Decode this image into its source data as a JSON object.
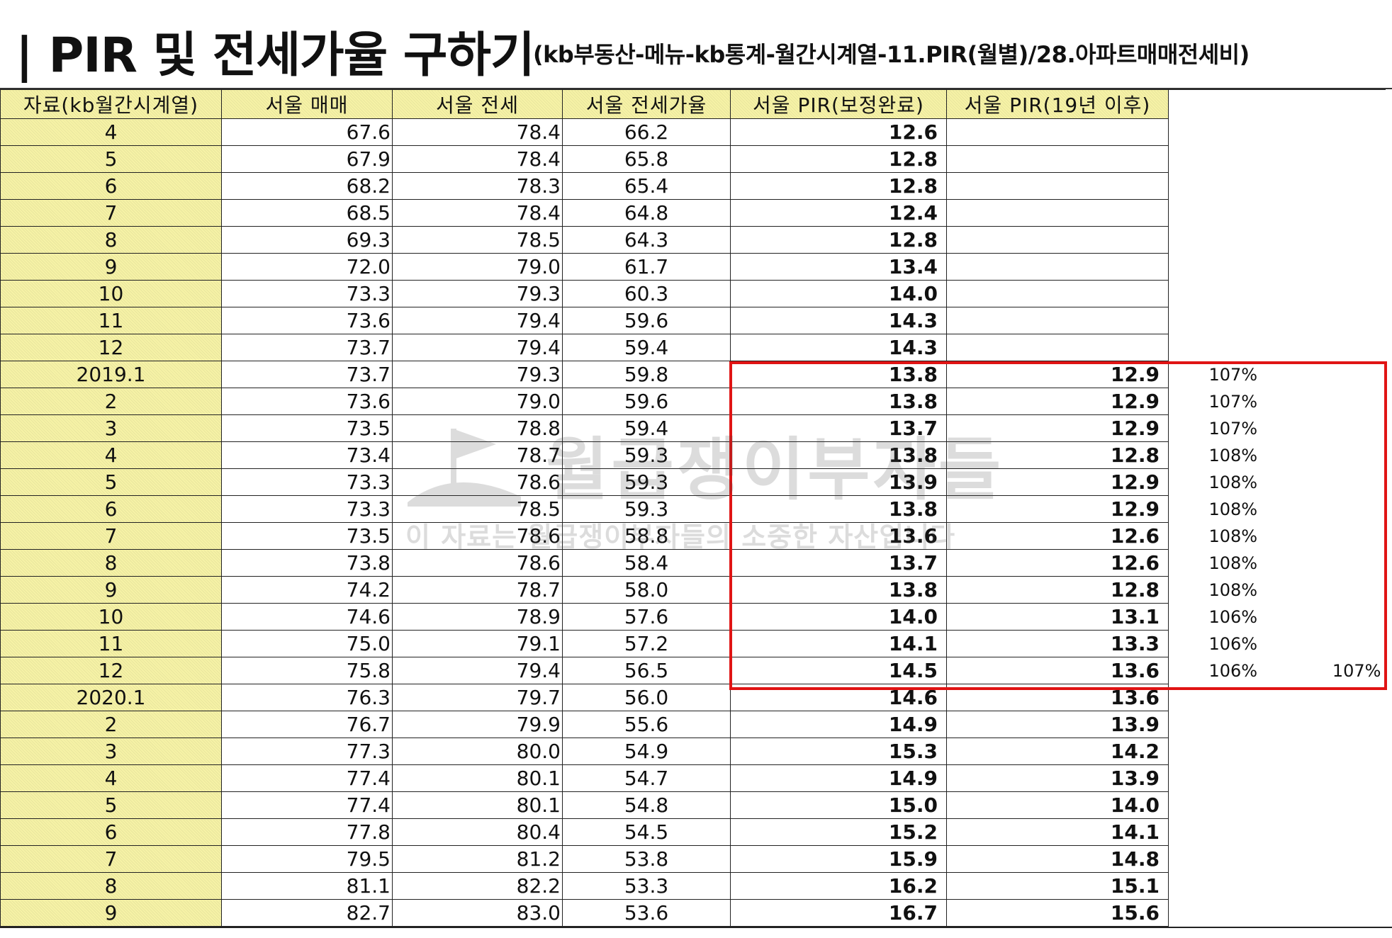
{
  "title": {
    "main": "| PIR 및 전세가율 구하기",
    "sub": "(kb부동산-메뉴-kb통계-월간시계열-11.PIR(월별)/28.아파트매매전세비)"
  },
  "table": {
    "headers": [
      "자료(kb월간시계열)",
      "서울 매매",
      "서울 전세",
      "서울 전세가율",
      "서울 PIR(보정완료)",
      "서울 PIR(19년 이후)"
    ],
    "rows": [
      {
        "date": "4",
        "buy": "67.6",
        "jeonse": "78.4",
        "ratio": "66.2",
        "pir": "12.6",
        "pir19": "",
        "pct": "",
        "avg": ""
      },
      {
        "date": "5",
        "buy": "67.9",
        "jeonse": "78.4",
        "ratio": "65.8",
        "pir": "12.8",
        "pir19": "",
        "pct": "",
        "avg": ""
      },
      {
        "date": "6",
        "buy": "68.2",
        "jeonse": "78.3",
        "ratio": "65.4",
        "pir": "12.8",
        "pir19": "",
        "pct": "",
        "avg": ""
      },
      {
        "date": "7",
        "buy": "68.5",
        "jeonse": "78.4",
        "ratio": "64.8",
        "pir": "12.4",
        "pir19": "",
        "pct": "",
        "avg": ""
      },
      {
        "date": "8",
        "buy": "69.3",
        "jeonse": "78.5",
        "ratio": "64.3",
        "pir": "12.8",
        "pir19": "",
        "pct": "",
        "avg": ""
      },
      {
        "date": "9",
        "buy": "72.0",
        "jeonse": "79.0",
        "ratio": "61.7",
        "pir": "13.4",
        "pir19": "",
        "pct": "",
        "avg": ""
      },
      {
        "date": "10",
        "buy": "73.3",
        "jeonse": "79.3",
        "ratio": "60.3",
        "pir": "14.0",
        "pir19": "",
        "pct": "",
        "avg": ""
      },
      {
        "date": "11",
        "buy": "73.6",
        "jeonse": "79.4",
        "ratio": "59.6",
        "pir": "14.3",
        "pir19": "",
        "pct": "",
        "avg": ""
      },
      {
        "date": "12",
        "buy": "73.7",
        "jeonse": "79.4",
        "ratio": "59.4",
        "pir": "14.3",
        "pir19": "",
        "pct": "",
        "avg": ""
      },
      {
        "date": "2019.1",
        "buy": "73.7",
        "jeonse": "79.3",
        "ratio": "59.8",
        "pir": "13.8",
        "pir19": "12.9",
        "pct": "107%",
        "avg": ""
      },
      {
        "date": "2",
        "buy": "73.6",
        "jeonse": "79.0",
        "ratio": "59.6",
        "pir": "13.8",
        "pir19": "12.9",
        "pct": "107%",
        "avg": ""
      },
      {
        "date": "3",
        "buy": "73.5",
        "jeonse": "78.8",
        "ratio": "59.4",
        "pir": "13.7",
        "pir19": "12.9",
        "pct": "107%",
        "avg": ""
      },
      {
        "date": "4",
        "buy": "73.4",
        "jeonse": "78.7",
        "ratio": "59.3",
        "pir": "13.8",
        "pir19": "12.8",
        "pct": "108%",
        "avg": ""
      },
      {
        "date": "5",
        "buy": "73.3",
        "jeonse": "78.6",
        "ratio": "59.3",
        "pir": "13.9",
        "pir19": "12.9",
        "pct": "108%",
        "avg": ""
      },
      {
        "date": "6",
        "buy": "73.3",
        "jeonse": "78.5",
        "ratio": "59.3",
        "pir": "13.8",
        "pir19": "12.9",
        "pct": "108%",
        "avg": ""
      },
      {
        "date": "7",
        "buy": "73.5",
        "jeonse": "78.6",
        "ratio": "58.8",
        "pir": "13.6",
        "pir19": "12.6",
        "pct": "108%",
        "avg": ""
      },
      {
        "date": "8",
        "buy": "73.8",
        "jeonse": "78.6",
        "ratio": "58.4",
        "pir": "13.7",
        "pir19": "12.6",
        "pct": "108%",
        "avg": ""
      },
      {
        "date": "9",
        "buy": "74.2",
        "jeonse": "78.7",
        "ratio": "58.0",
        "pir": "13.8",
        "pir19": "12.8",
        "pct": "108%",
        "avg": ""
      },
      {
        "date": "10",
        "buy": "74.6",
        "jeonse": "78.9",
        "ratio": "57.6",
        "pir": "14.0",
        "pir19": "13.1",
        "pct": "106%",
        "avg": ""
      },
      {
        "date": "11",
        "buy": "75.0",
        "jeonse": "79.1",
        "ratio": "57.2",
        "pir": "14.1",
        "pir19": "13.3",
        "pct": "106%",
        "avg": ""
      },
      {
        "date": "12",
        "buy": "75.8",
        "jeonse": "79.4",
        "ratio": "56.5",
        "pir": "14.5",
        "pir19": "13.6",
        "pct": "106%",
        "avg": "107%"
      },
      {
        "date": "2020.1",
        "buy": "76.3",
        "jeonse": "79.7",
        "ratio": "56.0",
        "pir": "14.6",
        "pir19": "13.6",
        "pct": "",
        "avg": ""
      },
      {
        "date": "2",
        "buy": "76.7",
        "jeonse": "79.9",
        "ratio": "55.6",
        "pir": "14.9",
        "pir19": "13.9",
        "pct": "",
        "avg": ""
      },
      {
        "date": "3",
        "buy": "77.3",
        "jeonse": "80.0",
        "ratio": "54.9",
        "pir": "15.3",
        "pir19": "14.2",
        "pct": "",
        "avg": ""
      },
      {
        "date": "4",
        "buy": "77.4",
        "jeonse": "80.1",
        "ratio": "54.7",
        "pir": "14.9",
        "pir19": "13.9",
        "pct": "",
        "avg": ""
      },
      {
        "date": "5",
        "buy": "77.4",
        "jeonse": "80.1",
        "ratio": "54.8",
        "pir": "15.0",
        "pir19": "14.0",
        "pct": "",
        "avg": ""
      },
      {
        "date": "6",
        "buy": "77.8",
        "jeonse": "80.4",
        "ratio": "54.5",
        "pir": "15.2",
        "pir19": "14.1",
        "pct": "",
        "avg": ""
      },
      {
        "date": "7",
        "buy": "79.5",
        "jeonse": "81.2",
        "ratio": "53.8",
        "pir": "15.9",
        "pir19": "14.8",
        "pct": "",
        "avg": ""
      },
      {
        "date": "8",
        "buy": "81.1",
        "jeonse": "82.2",
        "ratio": "53.3",
        "pir": "16.2",
        "pir19": "15.1",
        "pct": "",
        "avg": ""
      },
      {
        "date": "9",
        "buy": "82.7",
        "jeonse": "83.0",
        "ratio": "53.6",
        "pir": "16.7",
        "pir19": "15.6",
        "pct": "",
        "avg": ""
      }
    ]
  },
  "watermark": {
    "big": "월급쟁이부자들",
    "small": "이 자료는 월급쟁이부자들의 소중한 자산입니다"
  },
  "colors": {
    "header_fill": "#f6f2a6",
    "highlight_border": "#e01414",
    "grid": "#222222"
  }
}
